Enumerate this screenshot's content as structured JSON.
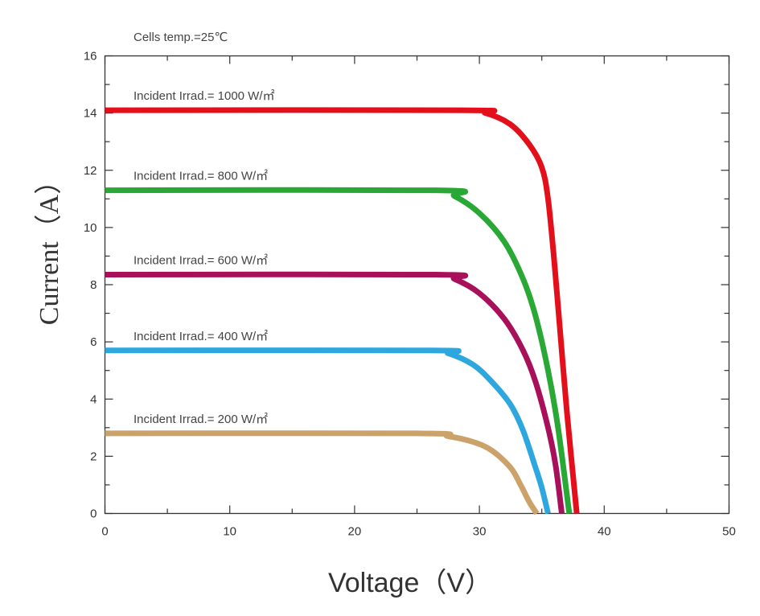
{
  "chart_data": {
    "type": "line",
    "annotation": "Cells temp.=25℃",
    "xlabel": "Voltage（V）",
    "ylabel": "Current（A）",
    "xlim": [
      0,
      50
    ],
    "ylim": [
      0,
      16
    ],
    "xticks": [
      0,
      10,
      20,
      30,
      40,
      50
    ],
    "yticks": [
      0,
      2,
      4,
      6,
      8,
      10,
      12,
      14,
      16
    ],
    "grid": false,
    "series": [
      {
        "name": "Incident Irrad.= 1000 W/㎡",
        "color": "#e3101c",
        "x": [
          0,
          28.5,
          30.5,
          32.5,
          34.0,
          35.0,
          35.5,
          36.0,
          36.5,
          37.0,
          37.8
        ],
        "y": [
          14.1,
          14.1,
          14.0,
          13.6,
          12.9,
          12.1,
          11.0,
          8.8,
          6.2,
          3.6,
          0
        ]
      },
      {
        "name": "Incident Irrad.= 800 W/㎡",
        "color": "#2aa836",
        "x": [
          0,
          26.5,
          28.0,
          30.0,
          32.0,
          33.5,
          34.5,
          35.5,
          36.3,
          37.2
        ],
        "y": [
          11.3,
          11.3,
          11.1,
          10.5,
          9.5,
          8.2,
          6.9,
          5.0,
          3.0,
          0
        ]
      },
      {
        "name": "Incident Irrad.= 600 W/㎡",
        "color": "#a8115a",
        "x": [
          0,
          26.5,
          28.0,
          30.0,
          32.0,
          33.5,
          34.5,
          35.5,
          36.1,
          36.6
        ],
        "y": [
          8.35,
          8.35,
          8.2,
          7.7,
          6.8,
          5.7,
          4.6,
          3.0,
          1.7,
          0
        ]
      },
      {
        "name": "Incident Irrad.= 400 W/㎡",
        "color": "#2ea7df",
        "x": [
          0,
          26.0,
          27.5,
          29.5,
          31.0,
          32.5,
          33.5,
          34.5,
          35.0,
          35.5
        ],
        "y": [
          5.7,
          5.7,
          5.6,
          5.2,
          4.6,
          3.8,
          2.9,
          1.6,
          0.9,
          0
        ]
      },
      {
        "name": "Incident Irrad.= 200 W/㎡",
        "color": "#cba36a",
        "x": [
          0,
          25.0,
          27.5,
          29.5,
          31.0,
          32.5,
          33.3,
          34.0,
          34.6
        ],
        "y": [
          2.8,
          2.8,
          2.7,
          2.5,
          2.2,
          1.6,
          1.0,
          0.4,
          0
        ]
      }
    ]
  }
}
